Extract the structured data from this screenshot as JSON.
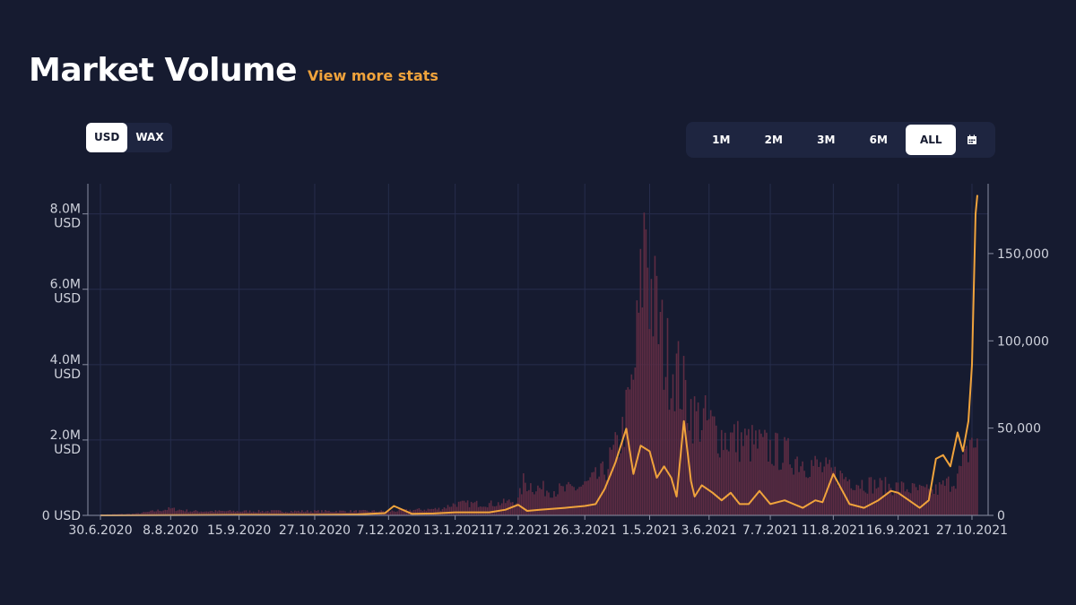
{
  "header": {
    "title": "Market Volume",
    "link": "View more stats"
  },
  "currency_toggle": {
    "options": [
      "USD",
      "WAX"
    ],
    "selected": "USD"
  },
  "range_selector": {
    "options": [
      "1M",
      "2M",
      "3M",
      "6M",
      "ALL"
    ],
    "selected": "ALL",
    "calendar_icon": "calendar-icon"
  },
  "colors": {
    "background": "#161b30",
    "line": "#f0a33c",
    "bars": "#5e2c43",
    "accent": "#f0a33c"
  },
  "chart_data": {
    "type": "bar+line",
    "x_tick_labels": [
      "30.6.2020",
      "8.8.2020",
      "15.9.2020",
      "27.10.2020",
      "7.12.2020",
      "13.1.2021",
      "17.2.2021",
      "26.3.2021",
      "1.5.2021",
      "3.6.2021",
      "7.7.2021",
      "11.8.2021",
      "16.9.2021",
      "27.10.2021"
    ],
    "left_axis": {
      "ticks": [
        0,
        2000000,
        4000000,
        6000000,
        8000000
      ],
      "tick_labels": [
        [
          "0 USD"
        ],
        [
          "2.0M",
          "USD"
        ],
        [
          "4.0M",
          "USD"
        ],
        [
          "6.0M",
          "USD"
        ],
        [
          "8.0M",
          "USD"
        ]
      ],
      "ylim": [
        0,
        8800000
      ]
    },
    "right_axis": {
      "ticks": [
        0,
        50000,
        100000,
        150000
      ],
      "tick_labels": [
        "0",
        "50,000",
        "100,000",
        "150,000"
      ],
      "ylim": [
        0,
        190000
      ]
    },
    "grid": true,
    "volume_usd_line": {
      "axis": "left",
      "dates": [
        "2020-06-30",
        "2020-08-08",
        "2020-09-15",
        "2020-10-27",
        "2020-11-20",
        "2020-12-05",
        "2020-12-10",
        "2020-12-20",
        "2021-01-01",
        "2021-01-13",
        "2021-02-01",
        "2021-02-10",
        "2021-02-17",
        "2021-02-22",
        "2021-03-01",
        "2021-03-15",
        "2021-03-26",
        "2021-04-01",
        "2021-04-06",
        "2021-04-12",
        "2021-04-18",
        "2021-04-22",
        "2021-04-26",
        "2021-05-01",
        "2021-05-05",
        "2021-05-09",
        "2021-05-13",
        "2021-05-16",
        "2021-05-20",
        "2021-05-24",
        "2021-05-26",
        "2021-05-30",
        "2021-06-05",
        "2021-06-10",
        "2021-06-15",
        "2021-06-20",
        "2021-06-25",
        "2021-07-01",
        "2021-07-07",
        "2021-07-15",
        "2021-07-25",
        "2021-08-01",
        "2021-08-05",
        "2021-08-11",
        "2021-08-20",
        "2021-08-28",
        "2021-09-05",
        "2021-09-12",
        "2021-09-16",
        "2021-09-22",
        "2021-09-28",
        "2021-10-03",
        "2021-10-07",
        "2021-10-11",
        "2021-10-15",
        "2021-10-19",
        "2021-10-22",
        "2021-10-25",
        "2021-10-27",
        "2021-10-28",
        "2021-10-29",
        "2021-10-30"
      ],
      "values": [
        0,
        5000,
        15000,
        15000,
        25000,
        60000,
        250000,
        40000,
        50000,
        80000,
        80000,
        150000,
        280000,
        120000,
        150000,
        200000,
        250000,
        300000,
        700000,
        1400000,
        2300000,
        1100000,
        1850000,
        1700000,
        1000000,
        1300000,
        1000000,
        500000,
        2500000,
        900000,
        500000,
        800000,
        600000,
        400000,
        600000,
        300000,
        300000,
        650000,
        300000,
        400000,
        200000,
        400000,
        350000,
        1100000,
        300000,
        200000,
        400000,
        650000,
        600000,
        400000,
        200000,
        400000,
        1500000,
        1600000,
        1300000,
        2200000,
        1700000,
        2500000,
        4000000,
        6000000,
        8000000,
        8500000
      ]
    },
    "transactions_bars": {
      "axis": "right",
      "dates": [
        "2020-06-30",
        "2020-07-20",
        "2020-08-08",
        "2020-08-20",
        "2020-09-15",
        "2020-10-27",
        "2020-12-07",
        "2021-01-05",
        "2021-01-13",
        "2021-02-05",
        "2021-02-17",
        "2021-02-20",
        "2021-03-01",
        "2021-03-15",
        "2021-03-26",
        "2021-04-05",
        "2021-04-15",
        "2021-04-22",
        "2021-04-26",
        "2021-04-29",
        "2021-05-01",
        "2021-05-05",
        "2021-05-10",
        "2021-05-15",
        "2021-05-20",
        "2021-05-26",
        "2021-06-03",
        "2021-06-10",
        "2021-06-20",
        "2021-07-01",
        "2021-07-07",
        "2021-07-20",
        "2021-08-01",
        "2021-08-11",
        "2021-08-25",
        "2021-09-05",
        "2021-09-16",
        "2021-09-28",
        "2021-10-05",
        "2021-10-10",
        "2021-10-15",
        "2021-10-20",
        "2021-10-24",
        "2021-10-27",
        "2021-10-29"
      ],
      "values": [
        500,
        1000,
        4000,
        2500,
        2500,
        2500,
        2500,
        4000,
        7000,
        7000,
        9000,
        20000,
        16000,
        15000,
        18000,
        25000,
        45000,
        80000,
        130000,
        180000,
        140000,
        120000,
        95000,
        90000,
        75000,
        60000,
        55000,
        48000,
        45000,
        42000,
        40000,
        35000,
        30000,
        25000,
        20000,
        18000,
        17000,
        15000,
        14000,
        17000,
        20000,
        25000,
        35000,
        48000,
        40000
      ]
    }
  }
}
